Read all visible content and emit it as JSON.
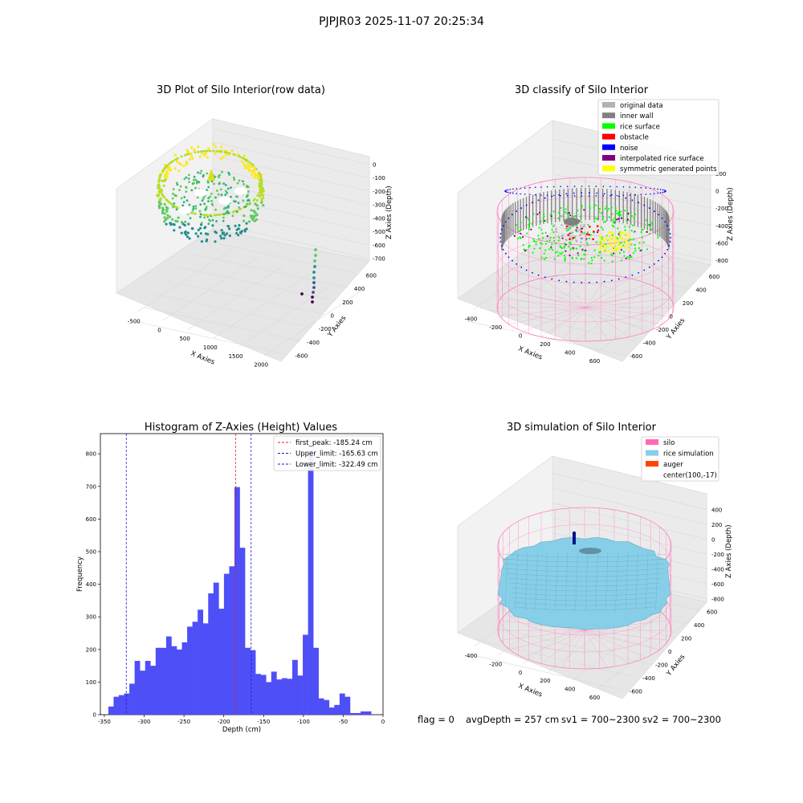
{
  "figure": {
    "suptitle": "PJPJR03 2025-11-07 20:25:34",
    "footer": {
      "flag": "flag = 0",
      "avg_depth": "avgDepth = 257 cm",
      "sv1": "sv1 = 700~2300",
      "sv2": "sv2 = 700~2300"
    }
  },
  "colors": {
    "histogram_bars": "#4f4ff7",
    "first_peak_line": "#e01b1b",
    "limit_lines": "#1a1ad8",
    "silo_wire": "#ff7fbf",
    "rice_surface": "#87cfe8",
    "auger": "#00108a",
    "original_data": "#b3b3b3",
    "inner_wall": "#808080",
    "rice_green": "#00ff00",
    "obstacle": "#ff0000",
    "noise": "#0000ff",
    "interpolated": "#800080",
    "symmetric": "#ffff00"
  },
  "chart_data": [
    {
      "type": "scatter",
      "subtype": "3d",
      "title": "3D Plot of Silo Interior(row data)",
      "xlabel": "X Axies",
      "ylabel": "Y Axies",
      "zlabel": "Z Axies (Depth)",
      "xticks": [
        "-500",
        "0",
        "500",
        "1000",
        "1500",
        "2000"
      ],
      "yticks": [
        "-600",
        "-400",
        "-200",
        "0",
        "200",
        "400",
        "600"
      ],
      "zticks": [
        "0",
        "-100",
        "-200",
        "-300",
        "-400",
        "-500",
        "-600",
        "-700"
      ],
      "colormap": "viridis",
      "grid": true
    },
    {
      "type": "scatter",
      "subtype": "3d",
      "title": "3D classify of Silo Interior",
      "xlabel": "X Axies",
      "ylabel": "Y Axies",
      "zlabel": "Z Axies (Depth)",
      "xticks": [
        "-400",
        "-200",
        "0",
        "200",
        "400",
        "600"
      ],
      "yticks": [
        "-600",
        "-400",
        "-200",
        "0",
        "200",
        "400",
        "600"
      ],
      "zticks": [
        "200",
        "0",
        "-200",
        "-400",
        "-600",
        "-800"
      ],
      "legend_position": "top-right",
      "legend": [
        {
          "label": "original data",
          "color": "#b3b3b3"
        },
        {
          "label": "inner wall",
          "color": "#808080"
        },
        {
          "label": "rice surface",
          "color": "#00ff00"
        },
        {
          "label": "obstacle",
          "color": "#ff0000"
        },
        {
          "label": "noise",
          "color": "#0000ff"
        },
        {
          "label": "interpolated rice surface",
          "color": "#800080"
        },
        {
          "label": "symmetric generated points",
          "color": "#ffff00"
        }
      ],
      "grid": true
    },
    {
      "type": "bar",
      "subtype": "histogram",
      "title": "Histogram of Z-Axies (Height) Values",
      "xlabel": "Depth (cm)",
      "ylabel": "Frequency",
      "xlim": [
        -355,
        0
      ],
      "ylim": [
        0,
        862
      ],
      "xticks": [
        -350,
        -300,
        -250,
        -200,
        -150,
        -100,
        -50,
        0
      ],
      "yticks": [
        0,
        100,
        200,
        300,
        400,
        500,
        600,
        700,
        800
      ],
      "bin_start": -345.0,
      "bin_width": 6.6,
      "counts": [
        25,
        55,
        60,
        65,
        95,
        165,
        135,
        165,
        150,
        205,
        205,
        240,
        210,
        200,
        222,
        270,
        285,
        322,
        280,
        372,
        405,
        325,
        432,
        455,
        698,
        512,
        205,
        198,
        125,
        122,
        100,
        132,
        108,
        112,
        110,
        168,
        120,
        245,
        810,
        205,
        50,
        45,
        22,
        30,
        65,
        55,
        5,
        5,
        10,
        10
      ],
      "vlines": [
        {
          "label": "first_peak: -185.24 cm",
          "x": -185.24,
          "color": "#e01b1b"
        },
        {
          "label": "Upper_limit: -165.63 cm",
          "x": -165.63,
          "color": "#1a1ad8"
        },
        {
          "label": "Lower_limit: -322.49 cm",
          "x": -322.49,
          "color": "#1a1ad8"
        }
      ],
      "legend_position": "top-right",
      "grid": false
    },
    {
      "type": "area",
      "subtype": "3d-surface",
      "title": "3D simulation of Silo Interior",
      "xlabel": "X Axies",
      "ylabel": "Y Axies",
      "zlabel": "Z Axies (Depth)",
      "xticks": [
        "-400",
        "-200",
        "0",
        "200",
        "400",
        "600"
      ],
      "yticks": [
        "-600",
        "-400",
        "-200",
        "0",
        "200",
        "400",
        "600"
      ],
      "zticks": [
        "400",
        "200",
        "0",
        "-200",
        "-400",
        "-600",
        "-800"
      ],
      "legend_position": "top-right",
      "legend": [
        {
          "label": "silo",
          "color": "#ff69b4"
        },
        {
          "label": "rice simulation",
          "color": "#87ceeb"
        },
        {
          "label": "auger",
          "color": "#ff4500"
        },
        {
          "label": "center(100,-17)",
          "color": ""
        }
      ],
      "grid": true
    }
  ]
}
